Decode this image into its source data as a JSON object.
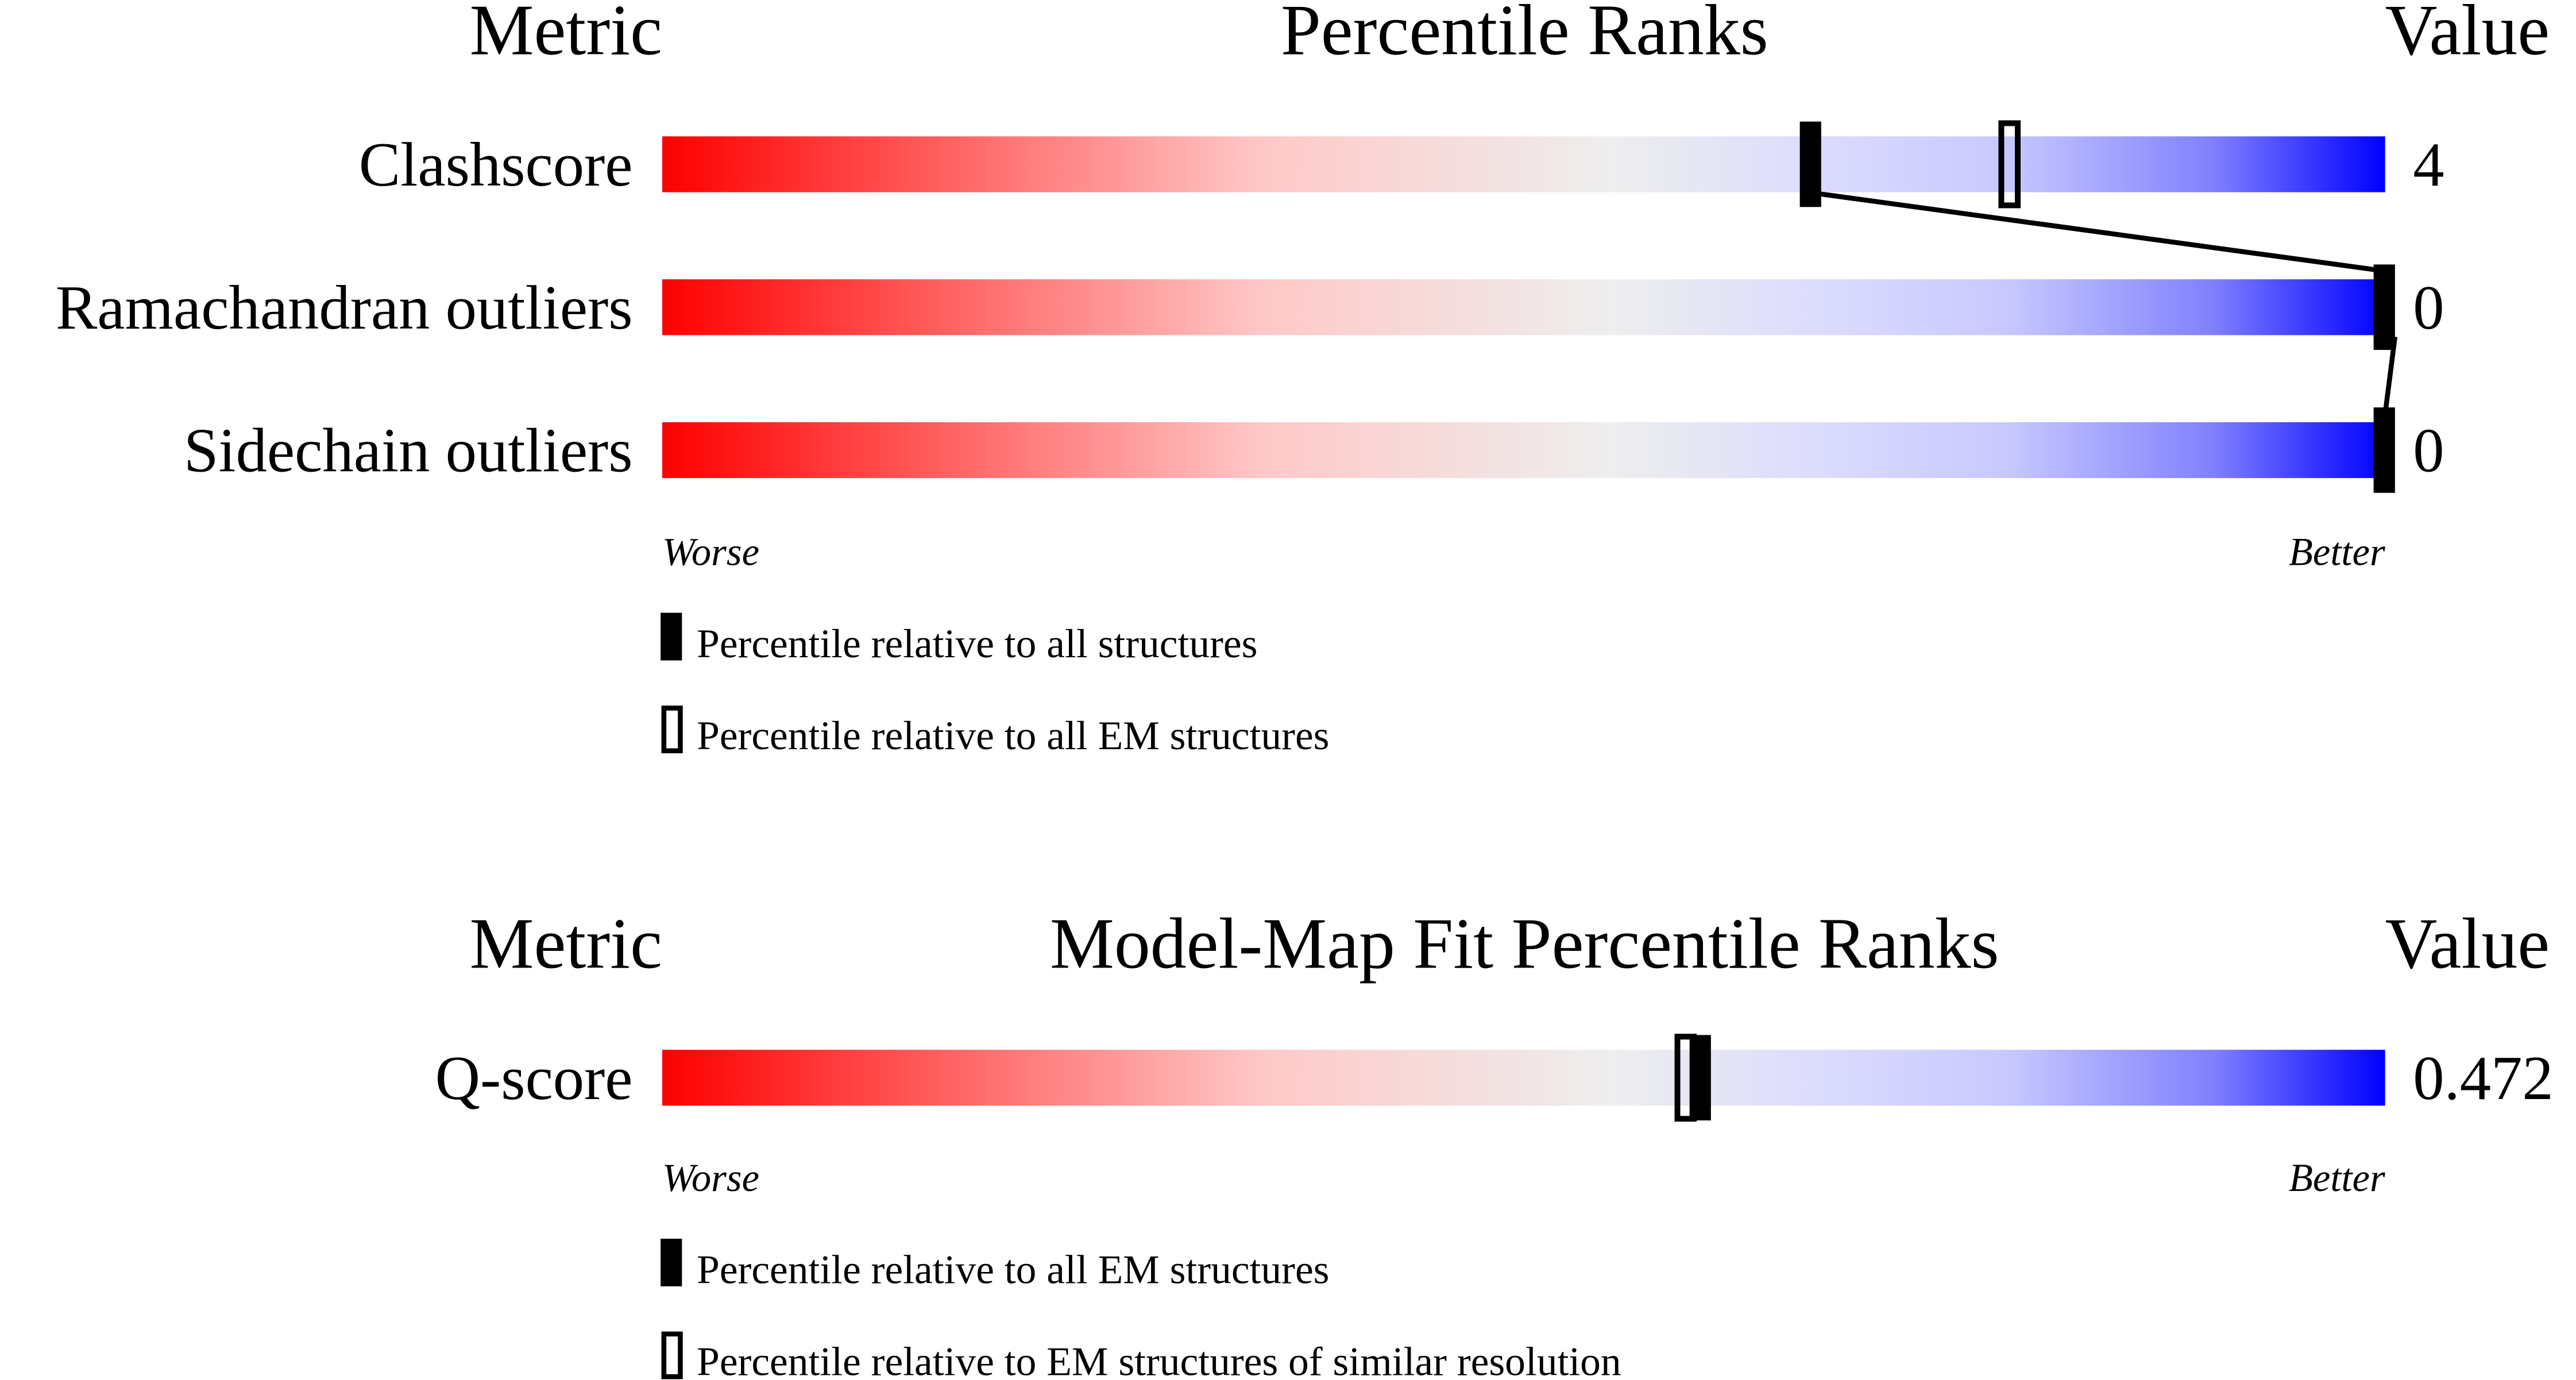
{
  "chart_data": [
    {
      "type": "percentile-slider",
      "header": {
        "metric": "Metric",
        "title": "Percentile Ranks",
        "value": "Value"
      },
      "xlim": [
        0,
        100
      ],
      "axis": {
        "worse": "Worse",
        "better": "Better"
      },
      "rows": [
        {
          "label": "Clashscore",
          "value": "4",
          "percentile_all": 66.6,
          "percentile_em": 78.2
        },
        {
          "label": "Ramachandran outliers",
          "value": "0",
          "percentile_all": 100
        },
        {
          "label": "Sidechain outliers",
          "value": "0",
          "percentile_all": 100
        }
      ],
      "legend": [
        {
          "marker": "filled",
          "text": "Percentile relative to all structures"
        },
        {
          "marker": "open",
          "text": "Percentile relative to all EM structures"
        }
      ]
    },
    {
      "type": "percentile-slider",
      "header": {
        "metric": "Metric",
        "title": "Model-Map Fit Percentile Ranks",
        "value": "Value"
      },
      "xlim": [
        0,
        100
      ],
      "axis": {
        "worse": "Worse",
        "better": "Better"
      },
      "rows": [
        {
          "label": "Q-score",
          "value": "0.472",
          "percentile_all": 60.2,
          "percentile_em": 59.4
        }
      ],
      "legend": [
        {
          "marker": "filled",
          "text": "Percentile relative to all EM structures"
        },
        {
          "marker": "open",
          "text": "Percentile relative to EM structures of similar resolution"
        }
      ]
    }
  ],
  "colors": {
    "worse": "#ff0000",
    "neutral": "#eeeeee",
    "better": "#0000ff",
    "marker": "#000000"
  }
}
